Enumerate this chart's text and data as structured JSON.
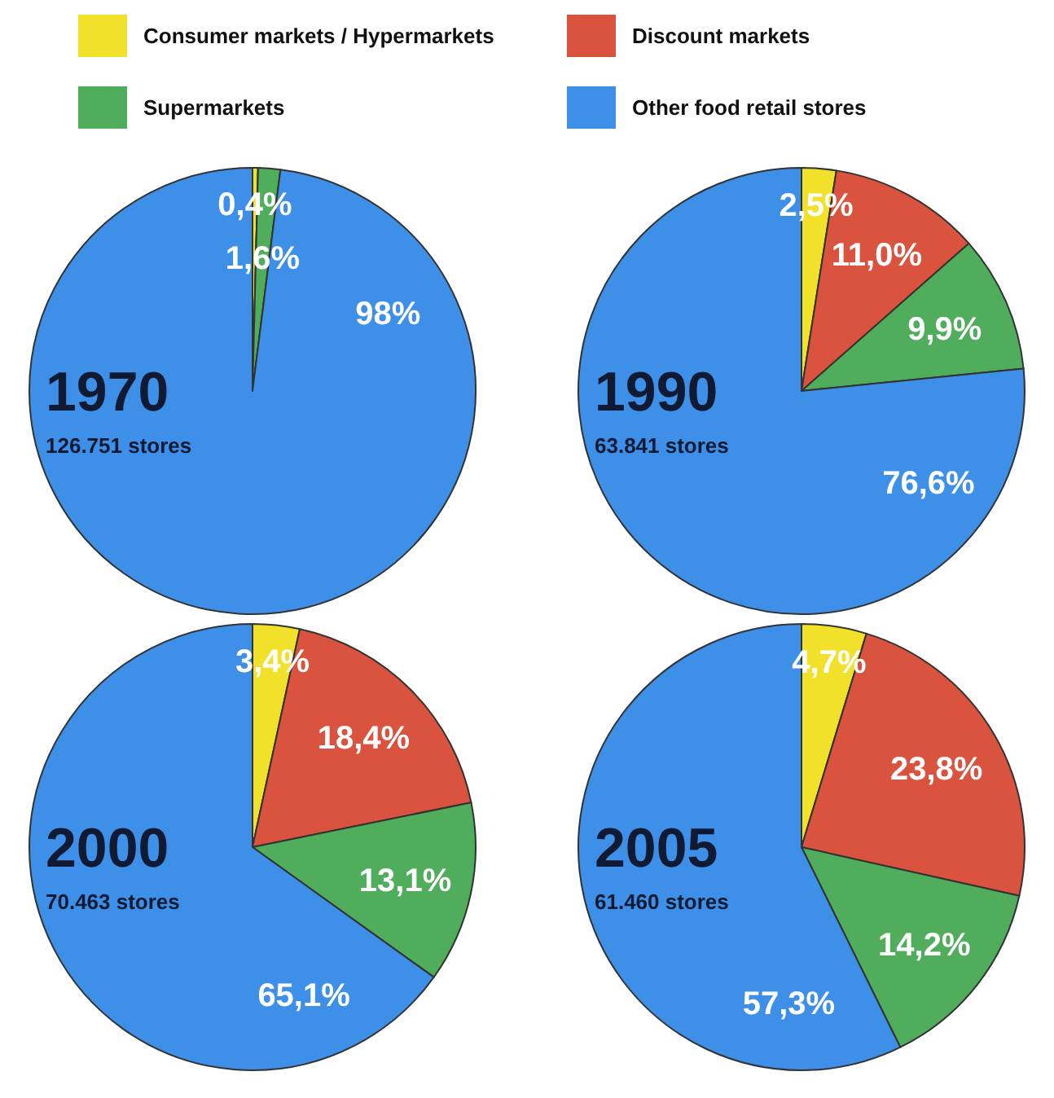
{
  "chart_data": [
    {
      "type": "pie",
      "title": "1970",
      "subtitle": "126.751 stores",
      "categories": [
        "Consumer markets / Hypermarkets",
        "Discount markets",
        "Supermarkets",
        "Other food retail stores"
      ],
      "values": [
        0.4,
        0,
        1.6,
        98
      ],
      "colors": [
        "#f2e12a",
        "#d9533f",
        "#4fad5b",
        "#3d8fe8"
      ],
      "value_labels": [
        "0,4%",
        null,
        "1,6%",
        "98%"
      ],
      "legend": "top"
    },
    {
      "type": "pie",
      "title": "1990",
      "subtitle": "63.841 stores",
      "categories": [
        null,
        null,
        null,
        null
      ],
      "values": [
        2.5,
        11.0,
        9.9,
        76.6
      ],
      "colors": [
        "#f2e12a",
        "#d9533f",
        "#4fad5b",
        "#3d8fe8"
      ],
      "value_labels": [
        "2,5%",
        "11,0%",
        "9,9%",
        "76,6%"
      ]
    },
    {
      "type": "pie",
      "title": "2000",
      "subtitle": "70.463 stores",
      "categories": [
        null,
        null,
        null,
        null
      ],
      "values": [
        3.4,
        18.4,
        13.1,
        65.1
      ],
      "colors": [
        "#f2e12a",
        "#d9533f",
        "#4fad5b",
        "#3d8fe8"
      ],
      "value_labels": [
        "3,4%",
        "18,4%",
        "13,1%",
        "65,1%"
      ]
    },
    {
      "type": "pie",
      "title": "2005",
      "subtitle": "61.460 stores",
      "categories": [
        null,
        null,
        null,
        null
      ],
      "values": [
        4.7,
        23.8,
        14.2,
        57.3
      ],
      "colors": [
        "#f2e12a",
        "#d9533f",
        "#4fad5b",
        "#3d8fe8"
      ],
      "value_labels": [
        "4,7%",
        "23,8%",
        "14,2%",
        "57,3%"
      ]
    }
  ]
}
